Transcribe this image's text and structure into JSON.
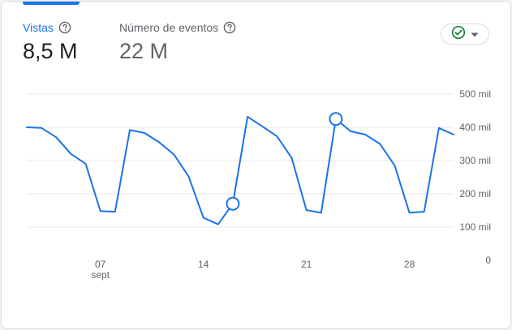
{
  "metrics": [
    {
      "label": "Vistas",
      "value": "8,5 M",
      "selected": true
    },
    {
      "label": "Número de eventos",
      "value": "22 M",
      "selected": false
    }
  ],
  "status_filter": {
    "icon": "check-circle-icon",
    "dropdown_icon": "caret-down-icon",
    "color": "#188038"
  },
  "colors": {
    "accent": "#1a73e8",
    "line": "#1a73e8",
    "grid": "#e8eaed",
    "text": "#202124",
    "muted": "#5f6368"
  },
  "chart_data": {
    "type": "line",
    "series": [
      {
        "values": [
          400,
          398,
          370,
          320,
          290,
          148,
          146,
          392,
          383,
          355,
          318,
          252,
          128,
          108,
          170,
          432,
          403,
          373,
          308,
          151,
          143,
          425,
          388,
          378,
          350,
          285,
          143,
          146,
          398,
          378
        ],
        "highlights": [
          14,
          21
        ]
      }
    ],
    "x_tick_labels": [
      {
        "index": 5,
        "label": "07",
        "sublabel": "sept"
      },
      {
        "index": 12,
        "label": "14",
        "sublabel": ""
      },
      {
        "index": 19,
        "label": "21",
        "sublabel": ""
      },
      {
        "index": 26,
        "label": "28",
        "sublabel": ""
      }
    ],
    "y_ticks": [
      {
        "value": 0,
        "label": "0"
      },
      {
        "value": 100,
        "label": "100 mil"
      },
      {
        "value": 200,
        "label": "200 mil"
      },
      {
        "value": 300,
        "label": "300 mil"
      },
      {
        "value": 400,
        "label": "400 mil"
      },
      {
        "value": 500,
        "label": "500 mil"
      }
    ],
    "ylim": [
      0,
      500
    ],
    "grid": true
  }
}
